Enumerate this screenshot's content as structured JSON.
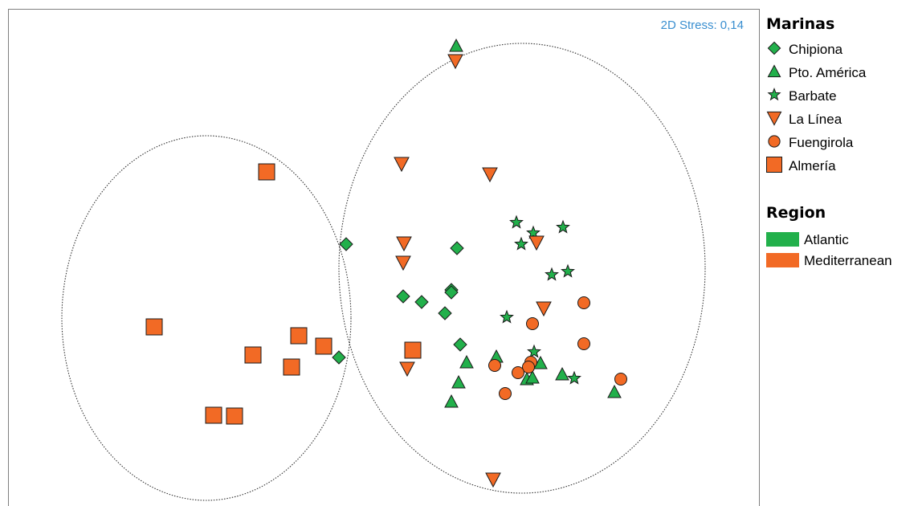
{
  "chart_data": {
    "type": "scatter",
    "title": "",
    "annotation": "2D Stress: 0,14",
    "xlabel": "",
    "ylabel": "",
    "grid": false,
    "axes_visible": false,
    "legend_position": "right",
    "legend": {
      "marinas_title": "Marinas",
      "region_title": "Region",
      "marinas": [
        {
          "name": "Chipiona",
          "symbol": "diamond",
          "region": "Atlantic"
        },
        {
          "name": "Pto. América",
          "symbol": "triangle-up",
          "region": "Atlantic"
        },
        {
          "name": "Barbate",
          "symbol": "star",
          "region": "Atlantic"
        },
        {
          "name": "La Línea",
          "symbol": "triangle-down",
          "region": "Mediterranean"
        },
        {
          "name": "Fuengirola",
          "symbol": "circle",
          "region": "Mediterranean"
        },
        {
          "name": "Almería",
          "symbol": "square",
          "region": "Mediterranean"
        }
      ],
      "regions": [
        {
          "name": "Atlantic",
          "color": "#22b04b"
        },
        {
          "name": "Mediterranean",
          "color": "#f26a25"
        }
      ]
    },
    "xlim": [
      0,
      935
    ],
    "ylim": [
      0,
      617
    ],
    "groupings": [
      {
        "center": [
          246,
          233
        ],
        "radii": [
          180,
          227
        ],
        "style": "dotted"
      },
      {
        "center": [
          639,
          295
        ],
        "radii": [
          228,
          280
        ],
        "style": "dotted"
      }
    ],
    "series": [
      {
        "name": "Chipiona",
        "points": [
          [
            420,
            325
          ],
          [
            558,
            320
          ],
          [
            551,
            268
          ],
          [
            551,
            265
          ],
          [
            491,
            260
          ],
          [
            514,
            253
          ],
          [
            543,
            239
          ],
          [
            562,
            200
          ],
          [
            411,
            184
          ]
        ]
      },
      {
        "name": "Pto. América",
        "points": [
          [
            557,
            572
          ],
          [
            570,
            178
          ],
          [
            607,
            185
          ],
          [
            662,
            177
          ],
          [
            645,
            157
          ],
          [
            652,
            159
          ],
          [
            689,
            163
          ],
          [
            560,
            153
          ],
          [
            754,
            141
          ],
          [
            551,
            129
          ]
        ]
      },
      {
        "name": "Barbate",
        "points": [
          [
            632,
            352
          ],
          [
            653,
            339
          ],
          [
            690,
            346
          ],
          [
            638,
            325
          ],
          [
            696,
            291
          ],
          [
            676,
            287
          ],
          [
            620,
            234
          ],
          [
            654,
            191
          ],
          [
            704,
            158
          ]
        ]
      },
      {
        "name": "La Línea",
        "points": [
          [
            556,
            553
          ],
          [
            489,
            425
          ],
          [
            599,
            412
          ],
          [
            492,
            326
          ],
          [
            491,
            302
          ],
          [
            657,
            327
          ],
          [
            666,
            245
          ],
          [
            496,
            170
          ],
          [
            603,
            32
          ]
        ]
      },
      {
        "name": "Fuengirola",
        "points": [
          [
            716,
            252
          ],
          [
            652,
            226
          ],
          [
            716,
            201
          ],
          [
            650,
            178
          ],
          [
            647,
            172
          ],
          [
            605,
            174
          ],
          [
            634,
            165
          ],
          [
            762,
            157
          ],
          [
            618,
            139
          ]
        ]
      },
      {
        "name": "Almería",
        "points": [
          [
            321,
            415
          ],
          [
            181,
            222
          ],
          [
            361,
            211
          ],
          [
            392,
            198
          ],
          [
            304,
            187
          ],
          [
            352,
            172
          ],
          [
            503,
            193
          ],
          [
            255,
            112
          ],
          [
            281,
            111
          ]
        ]
      }
    ]
  }
}
